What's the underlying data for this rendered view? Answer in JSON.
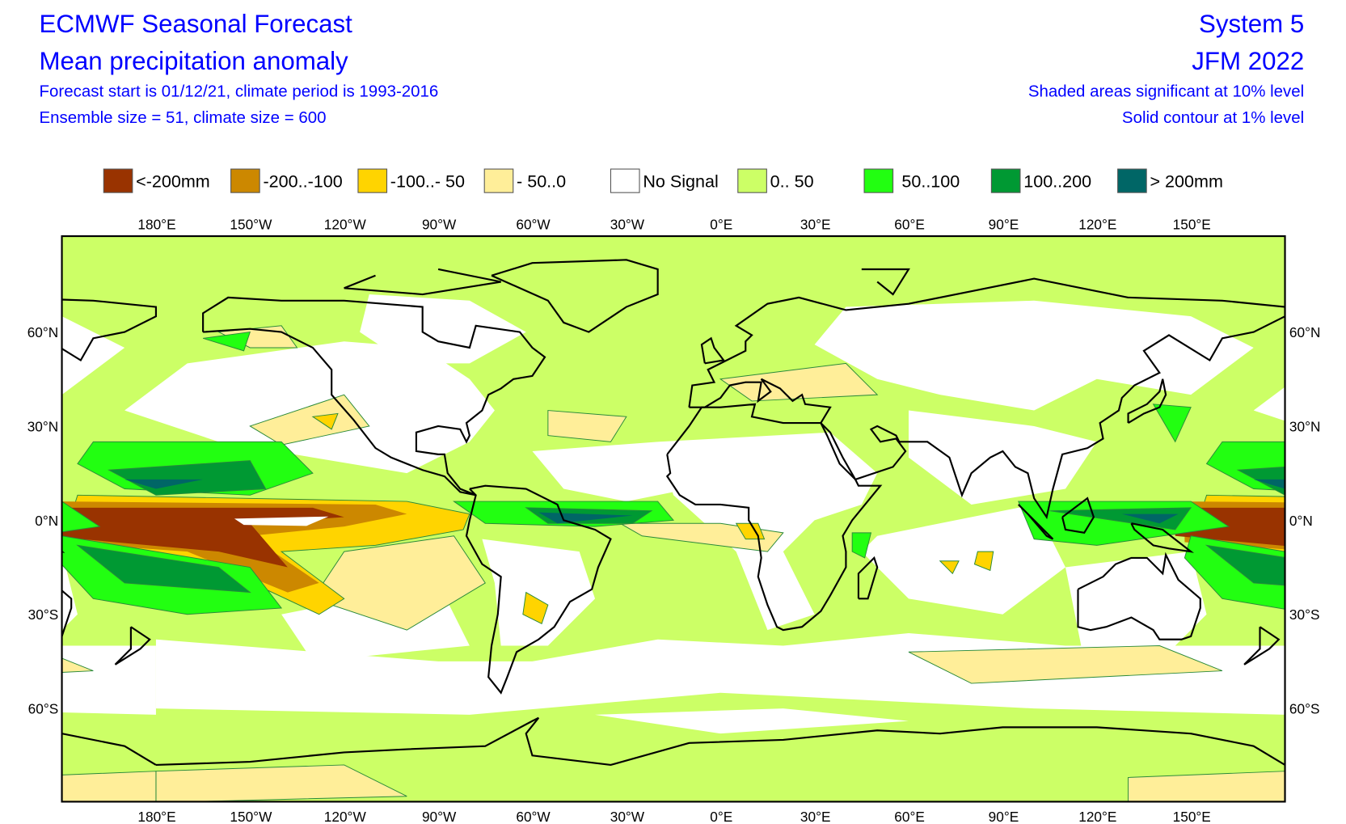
{
  "header": {
    "title": "ECMWF Seasonal Forecast",
    "subtitle": "Mean precipitation anomaly",
    "line3": "Forecast start is 01/12/21, climate period is 1993-2016",
    "line4": "Ensemble size = 51, climate size = 600",
    "system": "System 5",
    "period": "JFM 2022",
    "significance": "Shaded areas significant at 10% level",
    "contour_note": "Solid contour at 1% level"
  },
  "legend": [
    {
      "label": "<-200mm",
      "color": "#993300"
    },
    {
      "label": "-200..-100",
      "color": "#cc8800"
    },
    {
      "label": "-100..- 50",
      "color": "#ffd400"
    },
    {
      "label": "- 50..0",
      "color": "#ffee99"
    },
    {
      "label": "No Signal",
      "color": "#ffffff"
    },
    {
      "label": "0.. 50",
      "color": "#ccff66"
    },
    {
      "label": "50..100",
      "color": "#22ff11"
    },
    {
      "label": "100..200",
      "color": "#009933"
    },
    {
      "label": "> 200mm",
      "color": "#006666"
    }
  ],
  "axes": {
    "lon_labels": [
      "180°E",
      "150°W",
      "120°W",
      "90°W",
      "60°W",
      "30°W",
      "0°E",
      "30°E",
      "60°E",
      "90°E",
      "120°E",
      "150°E"
    ],
    "lat_labels": [
      "60°N",
      "30°N",
      "0°N",
      "30°S",
      "60°S"
    ]
  },
  "colors": {
    "text": "#0000ff",
    "coastline": "#000000",
    "contour": "#2a8a3a"
  }
}
